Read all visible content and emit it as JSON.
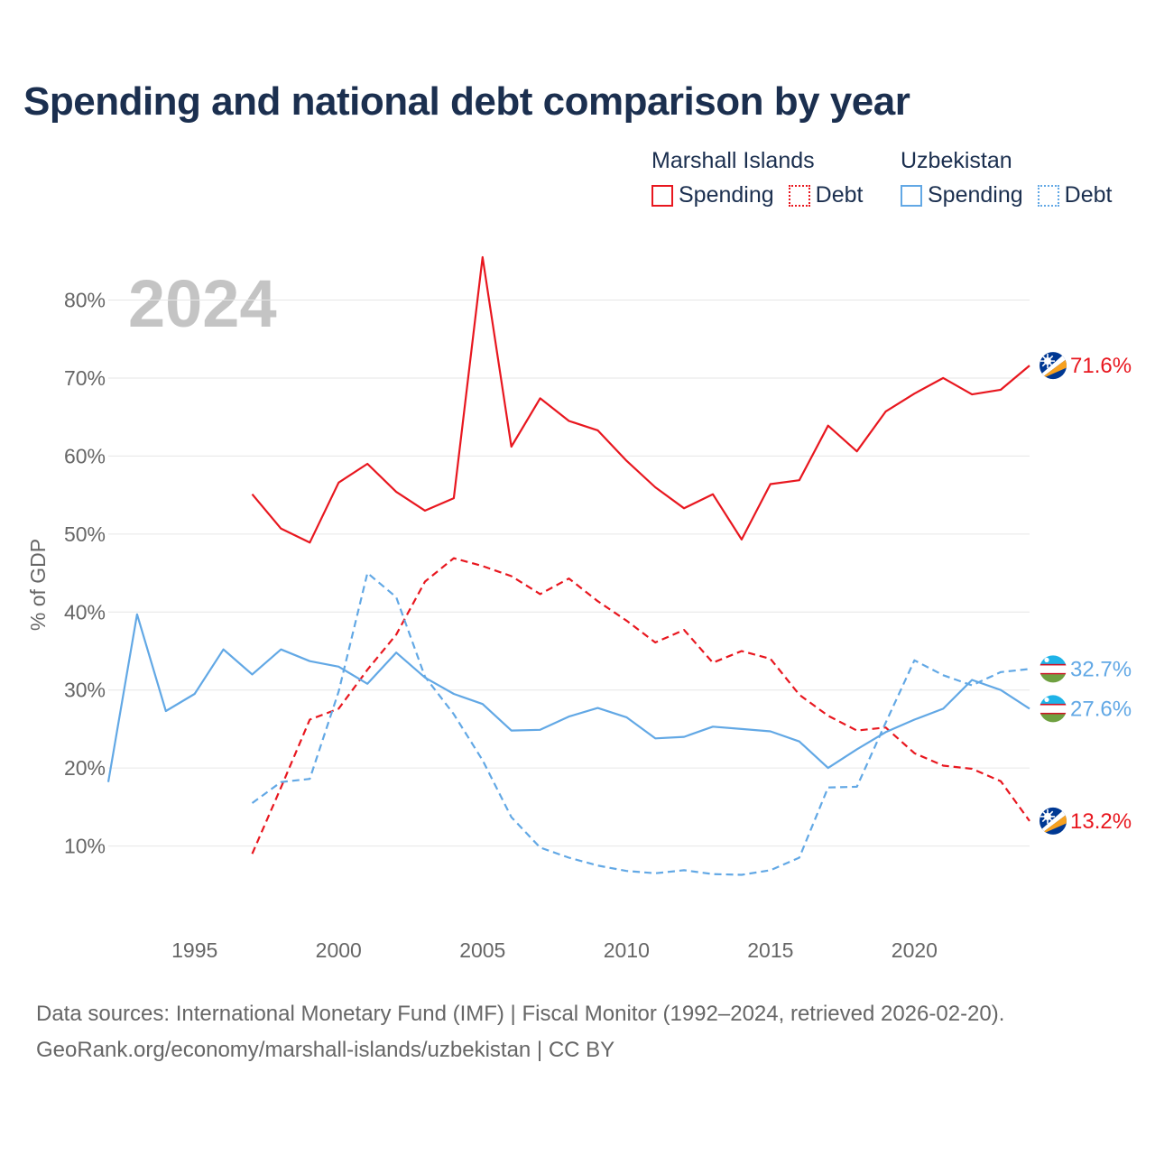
{
  "title": "Spending and national debt comparison by year",
  "legend": {
    "groups": [
      {
        "country": "Marshall Islands",
        "items": [
          {
            "label": "Spending",
            "style": "solid",
            "color": "#e8171f"
          },
          {
            "label": "Debt",
            "style": "dotted",
            "color": "#e8171f"
          }
        ]
      },
      {
        "country": "Uzbekistan",
        "items": [
          {
            "label": "Spending",
            "style": "solid",
            "color": "#62a8e5"
          },
          {
            "label": "Debt",
            "style": "dotted",
            "color": "#62a8e5"
          }
        ]
      }
    ]
  },
  "chart_data": {
    "type": "line",
    "title": "Spending and national debt comparison by year",
    "year_label": "2024",
    "xlabel": "",
    "ylabel": "% of GDP",
    "xlim": [
      1992,
      2024
    ],
    "ylim": [
      0,
      87
    ],
    "x_ticks": [
      1995,
      2000,
      2005,
      2010,
      2015,
      2020
    ],
    "y_ticks": [
      10,
      20,
      30,
      40,
      50,
      60,
      70,
      80
    ],
    "y_tick_labels": [
      "10%",
      "20%",
      "30%",
      "40%",
      "50%",
      "60%",
      "70%",
      "80%"
    ],
    "grid": true,
    "series": [
      {
        "name": "Marshall Islands Spending",
        "country": "Marshall Islands",
        "metric": "Spending",
        "color": "#e8171f",
        "dash": "solid",
        "flag": "marshall-islands",
        "x": [
          1997,
          1998,
          1999,
          2000,
          2001,
          2002,
          2003,
          2004,
          2005,
          2006,
          2007,
          2008,
          2009,
          2010,
          2011,
          2012,
          2013,
          2014,
          2015,
          2016,
          2017,
          2018,
          2019,
          2020,
          2021,
          2022,
          2023,
          2024
        ],
        "values": [
          55.1,
          50.7,
          48.9,
          56.6,
          59.0,
          55.4,
          53.0,
          54.6,
          85.5,
          61.2,
          67.4,
          64.5,
          63.3,
          59.4,
          56.0,
          53.3,
          55.1,
          49.3,
          56.4,
          56.9,
          63.9,
          60.6,
          65.7,
          68.0,
          70.0,
          67.9,
          68.5,
          71.6
        ],
        "end_label": "71.6%"
      },
      {
        "name": "Marshall Islands Debt",
        "country": "Marshall Islands",
        "metric": "Debt",
        "color": "#e8171f",
        "dash": "dashed",
        "flag": "marshall-islands",
        "x": [
          1997,
          1998,
          1999,
          2000,
          2001,
          2002,
          2003,
          2004,
          2005,
          2006,
          2007,
          2008,
          2009,
          2010,
          2011,
          2012,
          2013,
          2014,
          2015,
          2016,
          2017,
          2018,
          2019,
          2020,
          2021,
          2022,
          2023,
          2024
        ],
        "values": [
          9.0,
          17.5,
          26.2,
          27.6,
          32.6,
          37.1,
          43.9,
          46.9,
          45.9,
          44.6,
          42.3,
          44.3,
          41.4,
          38.9,
          36.1,
          37.7,
          33.5,
          35.0,
          34.0,
          29.4,
          26.7,
          24.8,
          25.2,
          21.9,
          20.3,
          19.9,
          18.3,
          13.2
        ],
        "end_label": "13.2%"
      },
      {
        "name": "Uzbekistan Spending",
        "country": "Uzbekistan",
        "metric": "Spending",
        "color": "#62a8e5",
        "dash": "solid",
        "flag": "uzbekistan",
        "x": [
          1992,
          1993,
          1994,
          1995,
          1996,
          1997,
          1998,
          1999,
          2000,
          2001,
          2002,
          2003,
          2004,
          2005,
          2006,
          2007,
          2008,
          2009,
          2010,
          2011,
          2012,
          2013,
          2014,
          2015,
          2016,
          2017,
          2018,
          2019,
          2020,
          2021,
          2022,
          2023,
          2024
        ],
        "values": [
          18.2,
          39.7,
          27.3,
          29.5,
          35.2,
          32.0,
          35.2,
          33.7,
          33.0,
          30.8,
          34.8,
          31.6,
          29.5,
          28.2,
          24.8,
          24.9,
          26.6,
          27.7,
          26.5,
          23.8,
          24.0,
          25.3,
          25.0,
          24.7,
          23.4,
          20.0,
          22.4,
          24.6,
          26.2,
          27.6,
          31.3,
          30.0,
          27.6
        ],
        "end_label": "27.6%"
      },
      {
        "name": "Uzbekistan Debt",
        "country": "Uzbekistan",
        "metric": "Debt",
        "color": "#62a8e5",
        "dash": "dashed",
        "flag": "uzbekistan",
        "x": [
          1997,
          1998,
          1999,
          2000,
          2001,
          2002,
          2003,
          2004,
          2005,
          2006,
          2007,
          2008,
          2009,
          2010,
          2011,
          2012,
          2013,
          2014,
          2015,
          2016,
          2017,
          2018,
          2019,
          2020,
          2021,
          2022,
          2023,
          2024
        ],
        "values": [
          15.5,
          18.2,
          18.6,
          29.8,
          45.0,
          41.9,
          31.7,
          26.9,
          21.0,
          13.7,
          9.8,
          8.5,
          7.5,
          6.8,
          6.5,
          6.9,
          6.4,
          6.3,
          6.9,
          8.5,
          17.5,
          17.6,
          25.8,
          33.8,
          31.9,
          30.6,
          32.3,
          32.7
        ],
        "end_label": "32.7%"
      }
    ]
  },
  "footer": {
    "line1": "Data sources: International Monetary Fund (IMF) | Fiscal Monitor (1992–2024, retrieved 2026-02-20).",
    "line2": "GeoRank.org/economy/marshall-islands/uzbekistan | CC BY"
  }
}
